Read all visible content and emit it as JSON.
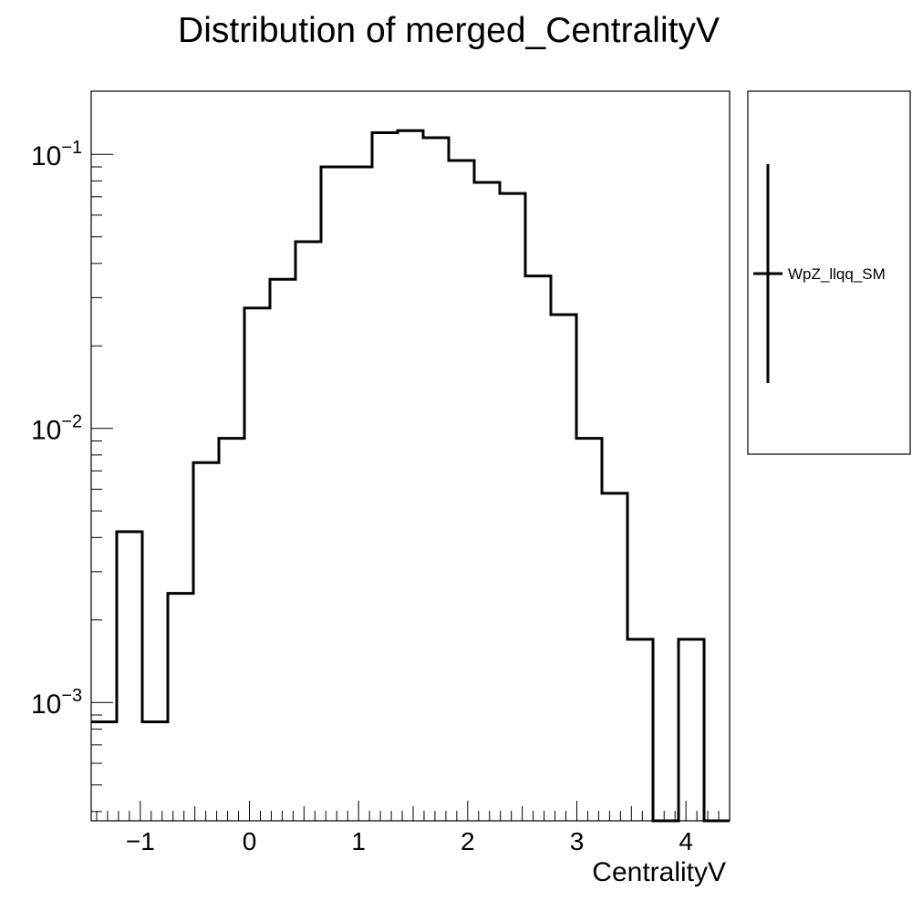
{
  "chart_data": {
    "type": "step-histogram",
    "title": "Distribution of merged_CentralityV",
    "xlabel": "CentralityV",
    "ylabel": "",
    "log_y": true,
    "xlim": [
      -1.45,
      4.4
    ],
    "ylim": [
      0.00037,
      0.17
    ],
    "x_ticks": [
      {
        "value": -1,
        "label": "−1"
      },
      {
        "value": 0,
        "label": "0"
      },
      {
        "value": 1,
        "label": "1"
      },
      {
        "value": 2,
        "label": "2"
      },
      {
        "value": 3,
        "label": "3"
      },
      {
        "value": 4,
        "label": "4"
      }
    ],
    "y_ticks": [
      {
        "value": 0.1,
        "base": "10",
        "exp": "−1"
      },
      {
        "value": 0.01,
        "base": "10",
        "exp": "−2"
      },
      {
        "value": 0.001,
        "base": "10",
        "exp": "−3"
      }
    ],
    "bin_edges": [
      -1.45,
      -1.216,
      -0.982,
      -0.748,
      -0.514,
      -0.28,
      -0.046,
      0.188,
      0.422,
      0.656,
      0.89,
      1.124,
      1.358,
      1.592,
      1.826,
      2.06,
      2.294,
      2.528,
      2.762,
      2.996,
      3.23,
      3.464,
      3.698,
      3.932,
      4.166,
      4.4
    ],
    "values": [
      0.00085,
      0.0042,
      0.00085,
      0.0025,
      0.0075,
      0.0092,
      0.0275,
      0.035,
      0.048,
      0.09,
      0.09,
      0.12,
      0.122,
      0.115,
      0.095,
      0.079,
      0.072,
      0.036,
      0.026,
      0.0092,
      0.0058,
      0.0017,
      0.0,
      0.0017,
      0.0
    ],
    "series": [
      {
        "name": "WpZ_llqq_SM",
        "color": "#000000"
      }
    ],
    "legend_placement": "right",
    "grid": false
  }
}
